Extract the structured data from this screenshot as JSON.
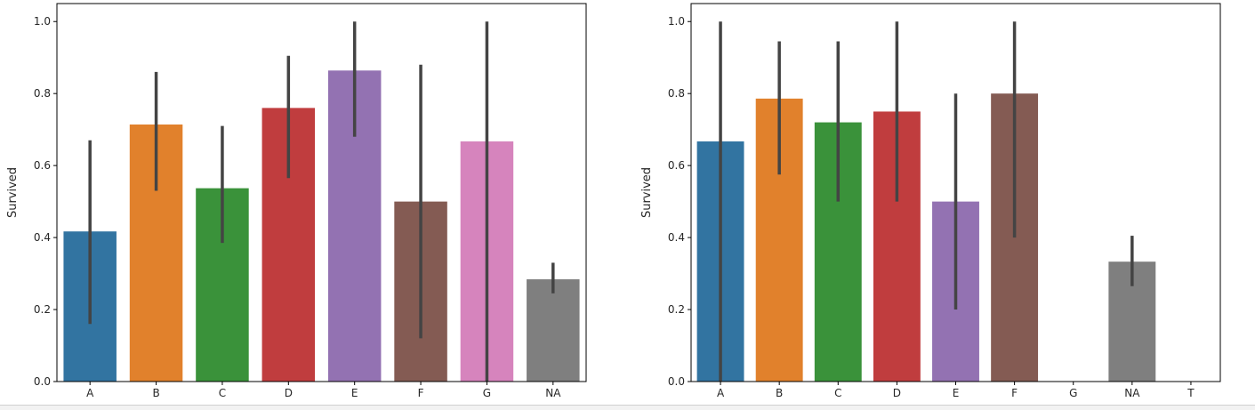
{
  "chart_data": [
    {
      "type": "bar",
      "xlabel": "",
      "ylabel": "Survived",
      "ylim": [
        0,
        1.05
      ],
      "yticks": [
        "0.0",
        "0.2",
        "0.4",
        "0.6",
        "0.8",
        "1.0"
      ],
      "categories": [
        "A",
        "B",
        "C",
        "D",
        "E",
        "F",
        "G",
        "NA"
      ],
      "values": [
        0.417,
        0.714,
        0.537,
        0.76,
        0.864,
        0.5,
        0.667,
        0.284
      ],
      "ci_low": [
        0.16,
        0.53,
        0.385,
        0.565,
        0.68,
        0.12,
        0.0,
        0.245
      ],
      "ci_high": [
        0.67,
        0.86,
        0.71,
        0.905,
        1.0,
        0.88,
        1.0,
        0.33
      ],
      "colors": [
        "#3274a1",
        "#e1812c",
        "#3a923a",
        "#c03d3e",
        "#9372b2",
        "#845b53",
        "#d684bd",
        "#7f7f7f"
      ]
    },
    {
      "type": "bar",
      "xlabel": "",
      "ylabel": "Survived",
      "ylim": [
        0,
        1.05
      ],
      "yticks": [
        "0.0",
        "0.2",
        "0.4",
        "0.6",
        "0.8",
        "1.0"
      ],
      "categories": [
        "A",
        "B",
        "C",
        "D",
        "E",
        "F",
        "G",
        "NA",
        "T"
      ],
      "values": [
        0.667,
        0.786,
        0.72,
        0.75,
        0.5,
        0.8,
        null,
        0.333,
        null
      ],
      "ci_low": [
        0.0,
        0.575,
        0.5,
        0.5,
        0.2,
        0.4,
        null,
        0.265,
        null
      ],
      "ci_high": [
        1.0,
        0.945,
        0.945,
        1.0,
        0.8,
        1.0,
        null,
        0.405,
        null
      ],
      "colors": [
        "#3274a1",
        "#e1812c",
        "#3a923a",
        "#c03d3e",
        "#9372b2",
        "#845b53",
        "#d684bd",
        "#7f7f7f",
        "#a9aa35"
      ]
    }
  ]
}
